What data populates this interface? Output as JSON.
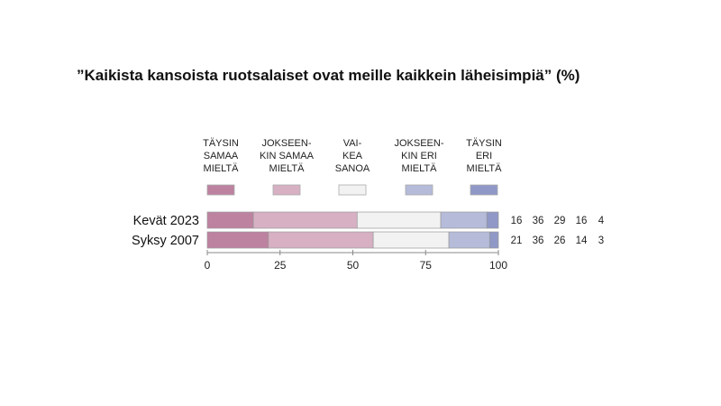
{
  "chart_data": {
    "type": "bar",
    "orientation": "horizontal-stacked",
    "title": "”Kaikista kansoista ruotsalaiset ovat meille kaikkein läheisimpiä” (%)",
    "categories": [
      "Kevät 2023",
      "Syksy 2007"
    ],
    "series": [
      {
        "name": [
          "TÄYSIN",
          "SAMAA",
          "MIELTÄ"
        ],
        "color": "#bd82a0",
        "values": [
          16,
          21
        ]
      },
      {
        "name": [
          "JOKSEEN-",
          "KIN SAMAA",
          "MIELTÄ"
        ],
        "color": "#d7b0c3",
        "values": [
          36,
          36
        ]
      },
      {
        "name": [
          "VAI-",
          "KEA",
          "SANOA"
        ],
        "color": "#f2f2f2",
        "values": [
          29,
          26
        ]
      },
      {
        "name": [
          "JOKSEEN-",
          "KIN ERI",
          "MIELTÄ"
        ],
        "color": "#b5bbd9",
        "values": [
          16,
          14
        ]
      },
      {
        "name": [
          "TÄYSIN",
          "ERI",
          "MIELTÄ"
        ],
        "color": "#8f98c6",
        "values": [
          4,
          3
        ]
      }
    ],
    "xlim": [
      0,
      100
    ],
    "xticks": [
      "0",
      "25",
      "50",
      "75",
      "100"
    ],
    "legend": "top",
    "grid": false
  }
}
